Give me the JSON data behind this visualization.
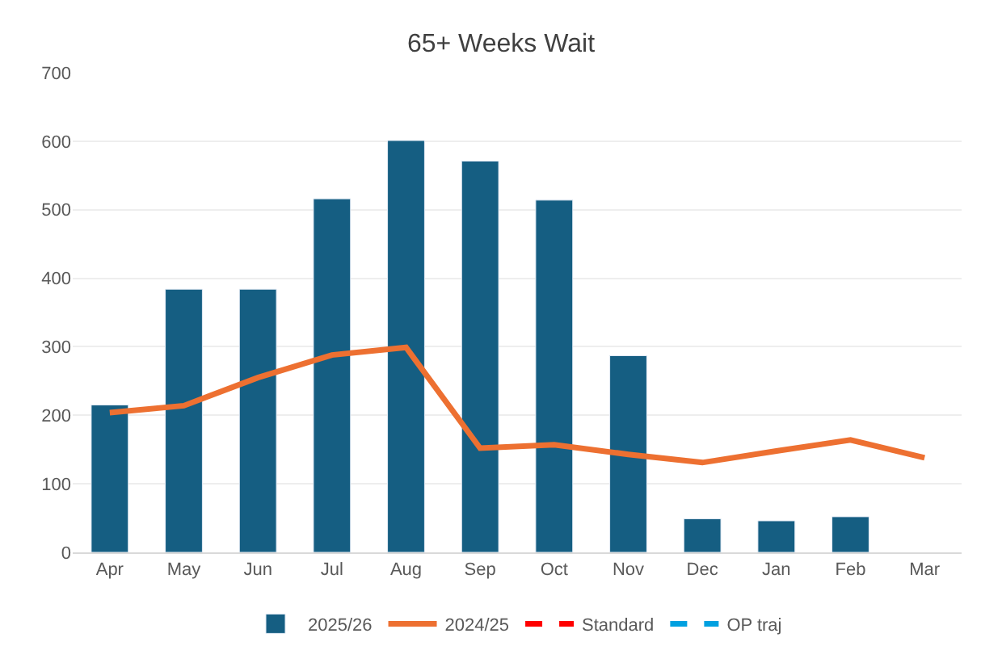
{
  "chart_data": {
    "type": "bar",
    "title": "65+ Weeks Wait",
    "categories": [
      "Apr",
      "May",
      "Jun",
      "Jul",
      "Aug",
      "Sep",
      "Oct",
      "Nov",
      "Dec",
      "Jan",
      "Feb",
      "Mar"
    ],
    "series": [
      {
        "name": "2025/26",
        "color": "#155e82",
        "values": [
          215,
          384,
          384,
          516,
          601,
          571,
          514,
          287,
          49,
          46,
          52,
          null
        ]
      },
      {
        "name": "2024/25",
        "type": "line",
        "color": "#ed7031",
        "line_style": "solid",
        "values": [
          204,
          214,
          255,
          288,
          299,
          152,
          157,
          143,
          131,
          148,
          164,
          138
        ]
      },
      {
        "name": "Standard",
        "type": "line",
        "color": "#ff0000",
        "line_style": "dashed",
        "values": [
          null,
          null,
          null,
          null,
          null,
          null,
          null,
          null,
          null,
          null,
          null,
          null
        ]
      },
      {
        "name": "OP traj",
        "type": "line",
        "color": "#00a0e0",
        "line_style": "dashed",
        "values": [
          null,
          null,
          null,
          null,
          null,
          null,
          null,
          null,
          null,
          null,
          null,
          null
        ]
      }
    ],
    "ylim": [
      0,
      700
    ],
    "yticks": [
      0,
      100,
      200,
      300,
      400,
      500,
      600,
      700
    ],
    "grid": "y",
    "legend": "bottom",
    "marker": "none"
  }
}
